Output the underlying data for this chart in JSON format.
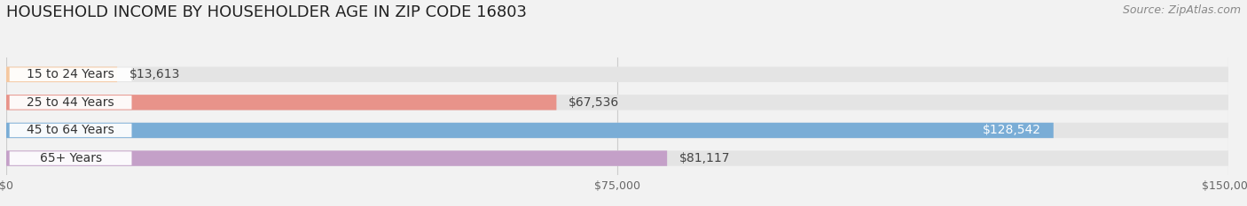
{
  "title": "HOUSEHOLD INCOME BY HOUSEHOLDER AGE IN ZIP CODE 16803",
  "source": "Source: ZipAtlas.com",
  "categories": [
    "15 to 24 Years",
    "25 to 44 Years",
    "45 to 64 Years",
    "65+ Years"
  ],
  "values": [
    13613,
    67536,
    128542,
    81117
  ],
  "labels": [
    "$13,613",
    "$67,536",
    "$128,542",
    "$81,117"
  ],
  "bar_colors": [
    "#f5c8a0",
    "#e8938a",
    "#7aadd6",
    "#c4a0c8"
  ],
  "bg_color": "#f2f2f2",
  "bar_bg_color": "#e4e4e4",
  "xlim": [
    0,
    150000
  ],
  "xticklabels": [
    "$0",
    "$75,000",
    "$150,000"
  ],
  "title_fontsize": 13,
  "source_fontsize": 9,
  "label_fontsize": 10,
  "category_fontsize": 10
}
